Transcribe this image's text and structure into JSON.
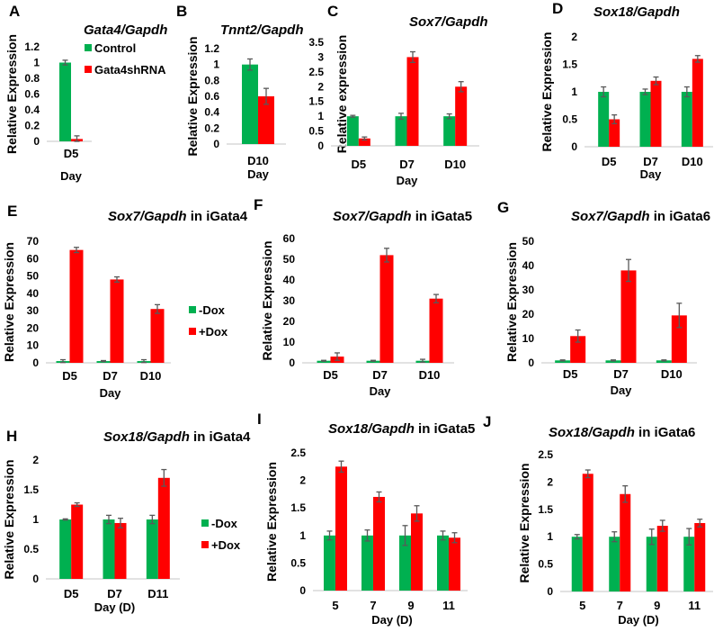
{
  "colors": {
    "green": "#00b050",
    "red": "#ff0000",
    "error": "#595959",
    "axis": "#d9d9d9"
  },
  "chart_data": [
    {
      "id": "A",
      "type": "bar",
      "panel_label": "A",
      "title_italic": "Gata4/Gapdh",
      "title_suffix": "",
      "ylabel": "Relative Expression",
      "xlabel": "Day",
      "ylim": [
        0,
        1.2
      ],
      "yticks": [
        "0",
        "0.2",
        "0.4",
        "0.6",
        "0.8",
        "1",
        "1.2"
      ],
      "ytick_values": [
        0,
        0.2,
        0.4,
        0.6,
        0.8,
        1,
        1.2
      ],
      "categories": [
        "D5"
      ],
      "legend": {
        "placement": "right",
        "entries": [
          "Control",
          "Gata4shRNA"
        ]
      },
      "series": [
        {
          "name": "Control",
          "color": "green",
          "values": [
            1.0
          ],
          "errors": [
            0.03
          ]
        },
        {
          "name": "Gata4shRNA",
          "color": "red",
          "values": [
            0.03
          ],
          "errors": [
            0.04
          ]
        }
      ]
    },
    {
      "id": "B",
      "type": "bar",
      "panel_label": "B",
      "title_italic": "Tnnt2/Gapdh",
      "title_suffix": "",
      "ylabel": "Relative Expression",
      "xlabel": "Day",
      "ylim": [
        0,
        1.2
      ],
      "yticks": [
        "0",
        "0.2",
        "0.4",
        "0.6",
        "0.8",
        "1",
        "1.2"
      ],
      "ytick_values": [
        0,
        0.2,
        0.4,
        0.6,
        0.8,
        1,
        1.2
      ],
      "categories": [
        "D10"
      ],
      "series": [
        {
          "name": "Control",
          "color": "green",
          "values": [
            1.0
          ],
          "errors": [
            0.07
          ]
        },
        {
          "name": "Gata4shRNA",
          "color": "red",
          "values": [
            0.6
          ],
          "errors": [
            0.1
          ]
        }
      ]
    },
    {
      "id": "C",
      "type": "bar",
      "panel_label": "C",
      "title_italic": "Sox7/Gapdh",
      "title_suffix": "",
      "ylabel": "Relative expression",
      "xlabel": "Day",
      "ylim": [
        0,
        3.5
      ],
      "yticks": [
        "0",
        "0.5",
        "1",
        "1.5",
        "2",
        "2.5",
        "3",
        "3.5"
      ],
      "ytick_values": [
        0,
        0.5,
        1,
        1.5,
        2,
        2.5,
        3,
        3.5
      ],
      "categories": [
        "D5",
        "D7",
        "D10"
      ],
      "series": [
        {
          "name": "Control",
          "color": "green",
          "values": [
            1.0,
            1.0,
            1.0
          ],
          "errors": [
            0.03,
            0.1,
            0.08
          ]
        },
        {
          "name": "Gata4shRNA",
          "color": "red",
          "values": [
            0.25,
            3.0,
            2.0
          ],
          "errors": [
            0.05,
            0.18,
            0.17
          ]
        }
      ]
    },
    {
      "id": "D",
      "type": "bar",
      "panel_label": "D",
      "title_italic": "Sox18/Gapdh",
      "title_suffix": "",
      "ylabel": "Relative Expression",
      "xlabel": "Day",
      "ylim": [
        0,
        2
      ],
      "yticks": [
        "0",
        "0.5",
        "1",
        "1.5",
        "2"
      ],
      "ytick_values": [
        0,
        0.5,
        1,
        1.5,
        2
      ],
      "categories": [
        "D5",
        "D7",
        "D10"
      ],
      "series": [
        {
          "name": "Control",
          "color": "green",
          "values": [
            1.0,
            1.0,
            1.0
          ],
          "errors": [
            0.09,
            0.05,
            0.09
          ]
        },
        {
          "name": "Gata4shRNA",
          "color": "red",
          "values": [
            0.5,
            1.2,
            1.6
          ],
          "errors": [
            0.08,
            0.07,
            0.06
          ]
        }
      ]
    },
    {
      "id": "E",
      "type": "bar",
      "panel_label": "E",
      "title_italic": "Sox7/Gapdh",
      "title_suffix": " in iGata4",
      "ylabel": "Relative Expression",
      "xlabel": "Day",
      "ylim": [
        0,
        70
      ],
      "yticks": [
        "0",
        "10",
        "20",
        "30",
        "40",
        "50",
        "60",
        "70"
      ],
      "ytick_values": [
        0,
        10,
        20,
        30,
        40,
        50,
        60,
        70
      ],
      "categories": [
        "D5",
        "D7",
        "D10"
      ],
      "legend": {
        "placement": "right",
        "entries": [
          "-Dox",
          "+Dox"
        ]
      },
      "series": [
        {
          "name": "-Dox",
          "color": "green",
          "values": [
            1,
            1,
            1
          ],
          "errors": [
            0.8,
            0.3,
            0.8
          ]
        },
        {
          "name": "+Dox",
          "color": "red",
          "values": [
            65,
            48,
            31
          ],
          "errors": [
            1.5,
            1.5,
            2.5
          ]
        }
      ]
    },
    {
      "id": "F",
      "type": "bar",
      "panel_label": "F",
      "title_italic": "Sox7/Gapdh",
      "title_suffix": " in iGata5",
      "ylabel": "Relative Expression",
      "xlabel": "Day",
      "ylim": [
        0,
        60
      ],
      "yticks": [
        "0",
        "10",
        "20",
        "30",
        "40",
        "50",
        "60"
      ],
      "ytick_values": [
        0,
        10,
        20,
        30,
        40,
        50,
        60
      ],
      "categories": [
        "D5",
        "D7",
        "D10"
      ],
      "series": [
        {
          "name": "-Dox",
          "color": "green",
          "values": [
            1,
            1,
            1
          ],
          "errors": [
            0.2,
            0.2,
            0.7
          ]
        },
        {
          "name": "+Dox",
          "color": "red",
          "values": [
            3,
            52,
            31
          ],
          "errors": [
            1.8,
            3.3,
            2.0
          ]
        }
      ]
    },
    {
      "id": "G",
      "type": "bar",
      "panel_label": "G",
      "title_italic": "Sox7/Gapdh",
      "title_suffix": " in iGata6",
      "ylabel": "Relative Expression",
      "xlabel": "Day",
      "ylim": [
        0,
        50
      ],
      "yticks": [
        "0",
        "10",
        "20",
        "30",
        "40",
        "50"
      ],
      "ytick_values": [
        0,
        10,
        20,
        30,
        40,
        50
      ],
      "categories": [
        "D5",
        "D7",
        "D10"
      ],
      "series": [
        {
          "name": "-Dox",
          "color": "green",
          "values": [
            1,
            1,
            1
          ],
          "errors": [
            0.2,
            0.2,
            0.2
          ]
        },
        {
          "name": "+Dox",
          "color": "red",
          "values": [
            11,
            38,
            19.5
          ],
          "errors": [
            2.5,
            4.5,
            5.0
          ]
        }
      ]
    },
    {
      "id": "H",
      "type": "bar",
      "panel_label": "H",
      "title_italic": "Sox18/Gapdh",
      "title_suffix": " in iGata4",
      "ylabel": "Relative Expression",
      "xlabel": "Day (D)",
      "ylim": [
        0,
        2
      ],
      "yticks": [
        "0",
        "0.5",
        "1",
        "1.5",
        "2"
      ],
      "ytick_values": [
        0,
        0.5,
        1,
        1.5,
        2
      ],
      "categories": [
        "D5",
        "D7",
        "D11"
      ],
      "legend": {
        "placement": "right",
        "entries": [
          "-Dox",
          "+Dox"
        ]
      },
      "series": [
        {
          "name": "-Dox",
          "color": "green",
          "values": [
            1.0,
            1.0,
            1.0
          ],
          "errors": [
            0.01,
            0.07,
            0.07
          ]
        },
        {
          "name": "+Dox",
          "color": "red",
          "values": [
            1.25,
            0.94,
            1.7
          ],
          "errors": [
            0.03,
            0.08,
            0.14
          ]
        }
      ]
    },
    {
      "id": "I",
      "type": "bar",
      "panel_label": "I",
      "title_italic": "Sox18/Gapdh",
      "title_suffix": " in iGata5",
      "ylabel": "Relative Expression",
      "xlabel": "Day (D)",
      "ylim": [
        0,
        2.5
      ],
      "yticks": [
        "0",
        "0.5",
        "1",
        "1.5",
        "2",
        "2.5"
      ],
      "ytick_values": [
        0,
        0.5,
        1,
        1.5,
        2,
        2.5
      ],
      "categories": [
        "5",
        "7",
        "9",
        "11"
      ],
      "series": [
        {
          "name": "-Dox",
          "color": "green",
          "values": [
            1.0,
            1.0,
            1.0,
            1.0
          ],
          "errors": [
            0.08,
            0.1,
            0.18,
            0.08
          ]
        },
        {
          "name": "+Dox",
          "color": "red",
          "values": [
            2.25,
            1.7,
            1.4,
            0.96
          ],
          "errors": [
            0.1,
            0.09,
            0.14,
            0.09
          ]
        }
      ]
    },
    {
      "id": "J",
      "type": "bar",
      "panel_label": "J",
      "title_italic": "Sox18/Gapdh",
      "title_suffix": " in iGata6",
      "ylabel": "Relative Expression",
      "xlabel": "Day (D)",
      "ylim": [
        0,
        2.5
      ],
      "yticks": [
        "0",
        "0.5",
        "1",
        "1.5",
        "2",
        "2.5"
      ],
      "ytick_values": [
        0,
        0.5,
        1,
        1.5,
        2,
        2.5
      ],
      "categories": [
        "5",
        "7",
        "9",
        "11"
      ],
      "series": [
        {
          "name": "-Dox",
          "color": "green",
          "values": [
            1.0,
            1.0,
            1.0,
            1.0
          ],
          "errors": [
            0.04,
            0.09,
            0.14,
            0.15
          ]
        },
        {
          "name": "+Dox",
          "color": "red",
          "values": [
            2.15,
            1.78,
            1.2,
            1.25
          ],
          "errors": [
            0.07,
            0.15,
            0.1,
            0.07
          ]
        }
      ]
    }
  ]
}
